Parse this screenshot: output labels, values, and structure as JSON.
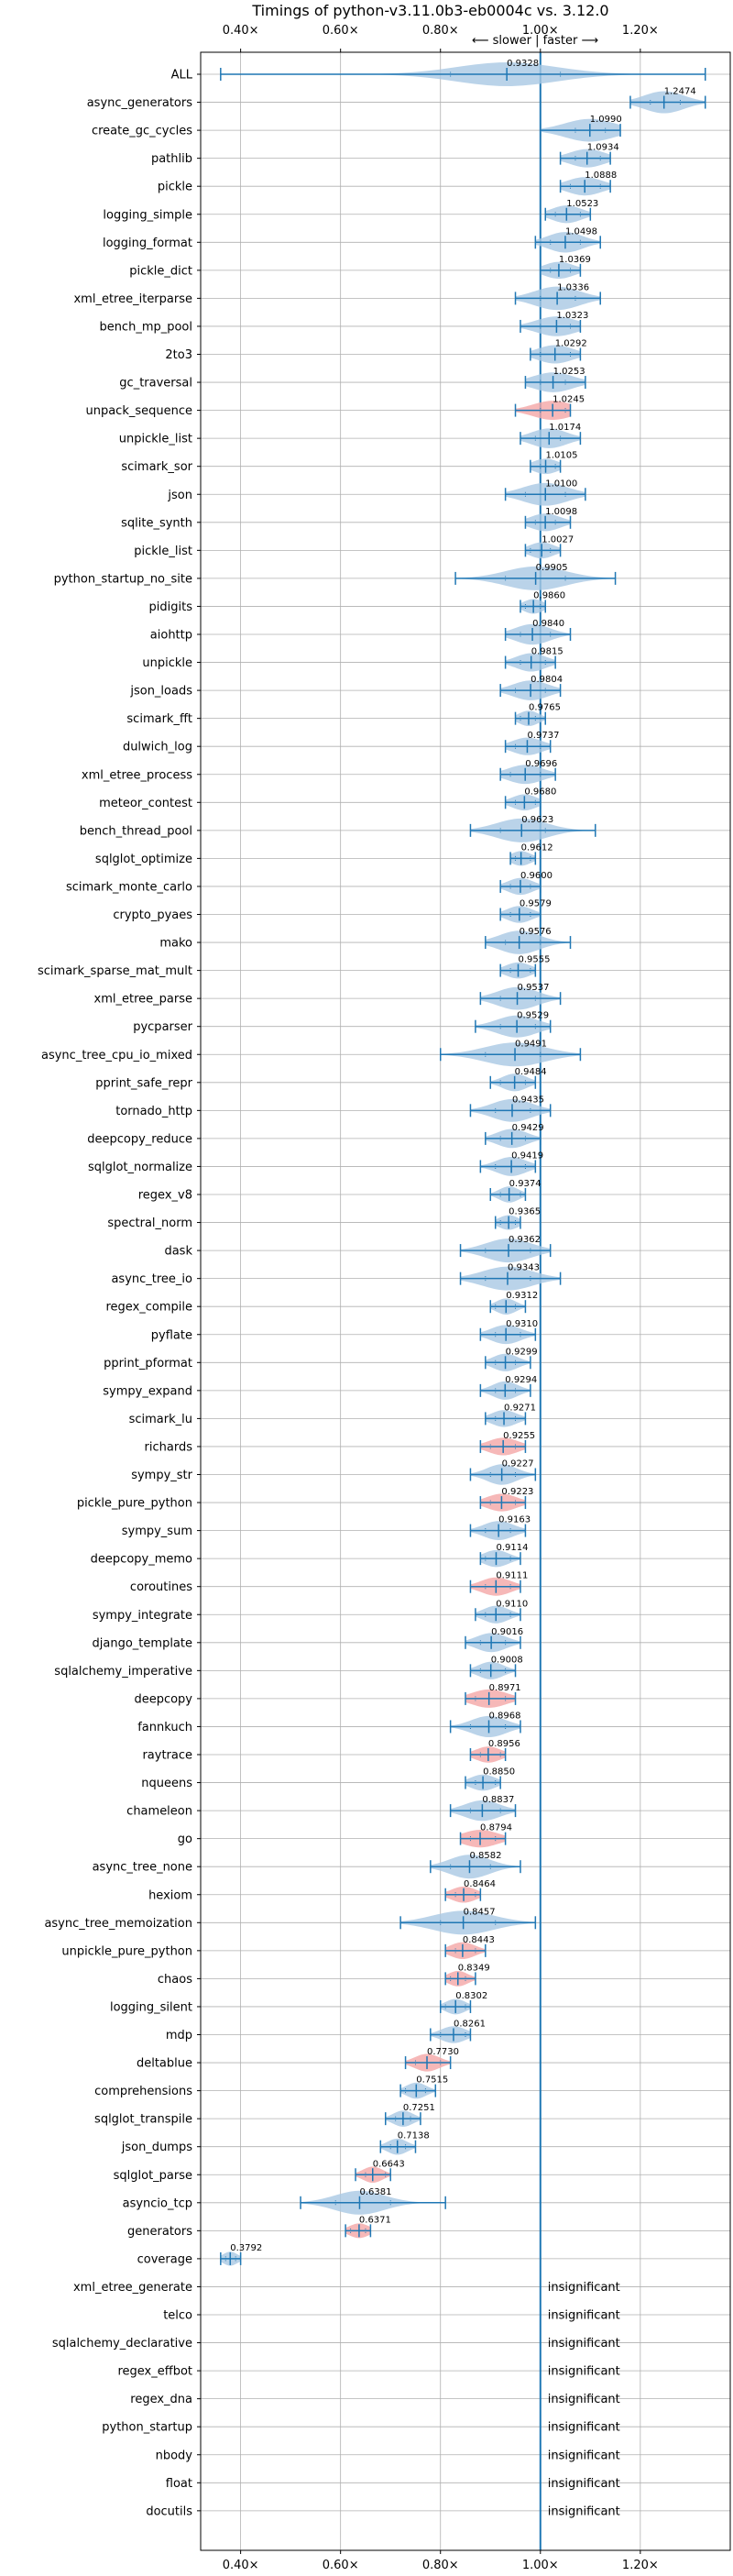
{
  "chart_data": {
    "type": "violin",
    "title": "Timings of python-v3.11.0b3-eb0004c vs. 3.12.0",
    "subtitle": "⟵ slower | faster ⟶",
    "xlim": [
      0.32,
      1.38
    ],
    "x_ticks": [
      0.4,
      0.6,
      0.8,
      1.0,
      1.2
    ],
    "x_tick_labels": [
      "0.40×",
      "0.60×",
      "0.80×",
      "1.00×",
      "1.20×"
    ],
    "reference_line": 1.0,
    "grid": true,
    "colors": {
      "faster": "#a9c8e3",
      "slower": "#f4a6a6",
      "line": "#1f77b4",
      "grid": "#b0b0b0"
    },
    "insignificant_text": "insignificant",
    "rows": [
      {
        "name": "ALL",
        "value": 0.9328,
        "label": "0.9328",
        "min": 0.36,
        "max": 1.33,
        "q1": 0.82,
        "q3": 1.04,
        "spread": 0.1,
        "color": "faster"
      },
      {
        "name": "async_generators",
        "value": 1.2474,
        "label": "1.2474",
        "min": 1.18,
        "max": 1.33,
        "q1": 1.22,
        "q3": 1.28,
        "spread": 0.04,
        "color": "faster"
      },
      {
        "name": "create_gc_cycles",
        "value": 1.099,
        "label": "1.0990",
        "min": 1.0,
        "max": 1.16,
        "q1": 1.07,
        "q3": 1.13,
        "spread": 0.05,
        "color": "faster"
      },
      {
        "name": "pathlib",
        "value": 1.0934,
        "label": "1.0934",
        "min": 1.04,
        "max": 1.14,
        "q1": 1.07,
        "q3": 1.12,
        "spread": 0.035,
        "color": "faster"
      },
      {
        "name": "pickle",
        "value": 1.0888,
        "label": "1.0888",
        "min": 1.04,
        "max": 1.14,
        "q1": 1.06,
        "q3": 1.12,
        "spread": 0.035,
        "color": "faster"
      },
      {
        "name": "logging_simple",
        "value": 1.0523,
        "label": "1.0523",
        "min": 1.01,
        "max": 1.1,
        "q1": 1.03,
        "q3": 1.08,
        "spread": 0.03,
        "color": "faster"
      },
      {
        "name": "logging_format",
        "value": 1.0498,
        "label": "1.0498",
        "min": 0.99,
        "max": 1.12,
        "q1": 1.02,
        "q3": 1.08,
        "spread": 0.035,
        "color": "faster"
      },
      {
        "name": "pickle_dict",
        "value": 1.0369,
        "label": "1.0369",
        "min": 1.0,
        "max": 1.08,
        "q1": 1.02,
        "q3": 1.06,
        "spread": 0.03,
        "color": "faster"
      },
      {
        "name": "xml_etree_iterparse",
        "value": 1.0336,
        "label": "1.0336",
        "min": 0.95,
        "max": 1.12,
        "q1": 1.0,
        "q3": 1.07,
        "spread": 0.045,
        "color": "faster"
      },
      {
        "name": "bench_mp_pool",
        "value": 1.0323,
        "label": "1.0323",
        "min": 0.96,
        "max": 1.08,
        "q1": 1.0,
        "q3": 1.06,
        "spread": 0.04,
        "color": "faster"
      },
      {
        "name": "2to3",
        "value": 1.0292,
        "label": "1.0292",
        "min": 0.98,
        "max": 1.08,
        "q1": 1.0,
        "q3": 1.06,
        "spread": 0.035,
        "color": "faster"
      },
      {
        "name": "gc_traversal",
        "value": 1.0253,
        "label": "1.0253",
        "min": 0.97,
        "max": 1.09,
        "q1": 1.0,
        "q3": 1.05,
        "spread": 0.04,
        "color": "faster"
      },
      {
        "name": "unpack_sequence",
        "value": 1.0245,
        "label": "1.0245",
        "min": 0.95,
        "max": 1.06,
        "q1": 1.0,
        "q3": 1.05,
        "spread": 0.04,
        "color": "slower"
      },
      {
        "name": "unpickle_list",
        "value": 1.0174,
        "label": "1.0174",
        "min": 0.96,
        "max": 1.08,
        "q1": 0.99,
        "q3": 1.04,
        "spread": 0.035,
        "color": "faster"
      },
      {
        "name": "scimark_sor",
        "value": 1.0105,
        "label": "1.0105",
        "min": 0.98,
        "max": 1.04,
        "q1": 1.0,
        "q3": 1.03,
        "spread": 0.025,
        "color": "faster"
      },
      {
        "name": "json",
        "value": 1.01,
        "label": "1.0100",
        "min": 0.93,
        "max": 1.09,
        "q1": 0.97,
        "q3": 1.05,
        "spread": 0.045,
        "color": "faster"
      },
      {
        "name": "sqlite_synth",
        "value": 1.0098,
        "label": "1.0098",
        "min": 0.97,
        "max": 1.06,
        "q1": 0.99,
        "q3": 1.03,
        "spread": 0.03,
        "color": "faster"
      },
      {
        "name": "pickle_list",
        "value": 1.0027,
        "label": "1.0027",
        "min": 0.97,
        "max": 1.04,
        "q1": 0.98,
        "q3": 1.02,
        "spread": 0.025,
        "color": "faster"
      },
      {
        "name": "python_startup_no_site",
        "value": 0.9905,
        "label": "0.9905",
        "min": 0.83,
        "max": 1.15,
        "q1": 0.93,
        "q3": 1.05,
        "spread": 0.06,
        "color": "faster"
      },
      {
        "name": "pidigits",
        "value": 0.986,
        "label": "0.9860",
        "min": 0.96,
        "max": 1.01,
        "q1": 0.97,
        "q3": 1.0,
        "spread": 0.02,
        "color": "faster"
      },
      {
        "name": "aiohttp",
        "value": 0.984,
        "label": "0.9840",
        "min": 0.93,
        "max": 1.06,
        "q1": 0.96,
        "q3": 1.02,
        "spread": 0.035,
        "color": "faster"
      },
      {
        "name": "unpickle",
        "value": 0.9815,
        "label": "0.9815",
        "min": 0.93,
        "max": 1.03,
        "q1": 0.96,
        "q3": 1.01,
        "spread": 0.03,
        "color": "faster"
      },
      {
        "name": "json_loads",
        "value": 0.9804,
        "label": "0.9804",
        "min": 0.92,
        "max": 1.04,
        "q1": 0.95,
        "q3": 1.01,
        "spread": 0.035,
        "color": "faster"
      },
      {
        "name": "scimark_fft",
        "value": 0.9765,
        "label": "0.9765",
        "min": 0.95,
        "max": 1.01,
        "q1": 0.96,
        "q3": 0.99,
        "spread": 0.02,
        "color": "faster"
      },
      {
        "name": "dulwich_log",
        "value": 0.9737,
        "label": "0.9737",
        "min": 0.93,
        "max": 1.02,
        "q1": 0.95,
        "q3": 1.0,
        "spread": 0.03,
        "color": "faster"
      },
      {
        "name": "xml_etree_process",
        "value": 0.9696,
        "label": "0.9696",
        "min": 0.92,
        "max": 1.03,
        "q1": 0.94,
        "q3": 1.0,
        "spread": 0.035,
        "color": "faster"
      },
      {
        "name": "meteor_contest",
        "value": 0.968,
        "label": "0.9680",
        "min": 0.93,
        "max": 1.0,
        "q1": 0.95,
        "q3": 0.99,
        "spread": 0.025,
        "color": "faster"
      },
      {
        "name": "bench_thread_pool",
        "value": 0.9623,
        "label": "0.9623",
        "min": 0.86,
        "max": 1.11,
        "q1": 0.92,
        "q3": 1.01,
        "spread": 0.05,
        "color": "faster"
      },
      {
        "name": "sqlglot_optimize",
        "value": 0.9612,
        "label": "0.9612",
        "min": 0.94,
        "max": 0.99,
        "q1": 0.95,
        "q3": 0.98,
        "spread": 0.02,
        "color": "faster"
      },
      {
        "name": "scimark_monte_carlo",
        "value": 0.96,
        "label": "0.9600",
        "min": 0.92,
        "max": 1.0,
        "q1": 0.94,
        "q3": 0.98,
        "spread": 0.025,
        "color": "faster"
      },
      {
        "name": "crypto_pyaes",
        "value": 0.9579,
        "label": "0.9579",
        "min": 0.92,
        "max": 1.0,
        "q1": 0.94,
        "q3": 0.98,
        "spread": 0.025,
        "color": "faster"
      },
      {
        "name": "mako",
        "value": 0.9576,
        "label": "0.9576",
        "min": 0.89,
        "max": 1.06,
        "q1": 0.93,
        "q3": 1.0,
        "spread": 0.04,
        "color": "faster"
      },
      {
        "name": "scimark_sparse_mat_mult",
        "value": 0.9555,
        "label": "0.9555",
        "min": 0.92,
        "max": 0.99,
        "q1": 0.94,
        "q3": 0.98,
        "spread": 0.025,
        "color": "faster"
      },
      {
        "name": "xml_etree_parse",
        "value": 0.9537,
        "label": "0.9537",
        "min": 0.88,
        "max": 1.04,
        "q1": 0.92,
        "q3": 0.99,
        "spread": 0.04,
        "color": "faster"
      },
      {
        "name": "pycparser",
        "value": 0.9529,
        "label": "0.9529",
        "min": 0.87,
        "max": 1.02,
        "q1": 0.92,
        "q3": 0.99,
        "spread": 0.04,
        "color": "faster"
      },
      {
        "name": "async_tree_cpu_io_mixed",
        "value": 0.9491,
        "label": "0.9491",
        "min": 0.8,
        "max": 1.08,
        "q1": 0.89,
        "q3": 1.0,
        "spread": 0.06,
        "color": "faster"
      },
      {
        "name": "pprint_safe_repr",
        "value": 0.9484,
        "label": "0.9484",
        "min": 0.9,
        "max": 0.99,
        "q1": 0.92,
        "q3": 0.97,
        "spread": 0.025,
        "color": "faster"
      },
      {
        "name": "tornado_http",
        "value": 0.9435,
        "label": "0.9435",
        "min": 0.86,
        "max": 1.02,
        "q1": 0.91,
        "q3": 0.98,
        "spread": 0.04,
        "color": "faster"
      },
      {
        "name": "deepcopy_reduce",
        "value": 0.9429,
        "label": "0.9429",
        "min": 0.89,
        "max": 1.0,
        "q1": 0.92,
        "q3": 0.97,
        "spread": 0.03,
        "color": "faster"
      },
      {
        "name": "sqlglot_normalize",
        "value": 0.9419,
        "label": "0.9419",
        "min": 0.88,
        "max": 0.99,
        "q1": 0.91,
        "q3": 0.97,
        "spread": 0.03,
        "color": "faster"
      },
      {
        "name": "regex_v8",
        "value": 0.9374,
        "label": "0.9374",
        "min": 0.9,
        "max": 0.97,
        "q1": 0.92,
        "q3": 0.96,
        "spread": 0.02,
        "color": "faster"
      },
      {
        "name": "spectral_norm",
        "value": 0.9365,
        "label": "0.9365",
        "min": 0.91,
        "max": 0.96,
        "q1": 0.92,
        "q3": 0.95,
        "spread": 0.02,
        "color": "faster"
      },
      {
        "name": "dask",
        "value": 0.9362,
        "label": "0.9362",
        "min": 0.84,
        "max": 1.02,
        "q1": 0.89,
        "q3": 0.98,
        "spread": 0.045,
        "color": "faster"
      },
      {
        "name": "async_tree_io",
        "value": 0.9343,
        "label": "0.9343",
        "min": 0.84,
        "max": 1.04,
        "q1": 0.89,
        "q3": 0.98,
        "spread": 0.05,
        "color": "faster"
      },
      {
        "name": "regex_compile",
        "value": 0.9312,
        "label": "0.9312",
        "min": 0.9,
        "max": 0.97,
        "q1": 0.91,
        "q3": 0.95,
        "spread": 0.02,
        "color": "faster"
      },
      {
        "name": "pyflate",
        "value": 0.931,
        "label": "0.9310",
        "min": 0.88,
        "max": 0.99,
        "q1": 0.91,
        "q3": 0.96,
        "spread": 0.03,
        "color": "faster"
      },
      {
        "name": "pprint_pformat",
        "value": 0.9299,
        "label": "0.9299",
        "min": 0.89,
        "max": 0.98,
        "q1": 0.91,
        "q3": 0.95,
        "spread": 0.025,
        "color": "faster"
      },
      {
        "name": "sympy_expand",
        "value": 0.9294,
        "label": "0.9294",
        "min": 0.88,
        "max": 0.98,
        "q1": 0.91,
        "q3": 0.95,
        "spread": 0.025,
        "color": "faster"
      },
      {
        "name": "scimark_lu",
        "value": 0.9271,
        "label": "0.9271",
        "min": 0.89,
        "max": 0.97,
        "q1": 0.91,
        "q3": 0.95,
        "spread": 0.025,
        "color": "faster"
      },
      {
        "name": "richards",
        "value": 0.9255,
        "label": "0.9255",
        "min": 0.88,
        "max": 0.97,
        "q1": 0.9,
        "q3": 0.95,
        "spread": 0.03,
        "color": "slower"
      },
      {
        "name": "sympy_str",
        "value": 0.9227,
        "label": "0.9227",
        "min": 0.86,
        "max": 0.99,
        "q1": 0.9,
        "q3": 0.95,
        "spread": 0.03,
        "color": "faster"
      },
      {
        "name": "pickle_pure_python",
        "value": 0.9223,
        "label": "0.9223",
        "min": 0.88,
        "max": 0.97,
        "q1": 0.9,
        "q3": 0.95,
        "spread": 0.03,
        "color": "slower"
      },
      {
        "name": "sympy_sum",
        "value": 0.9163,
        "label": "0.9163",
        "min": 0.86,
        "max": 0.97,
        "q1": 0.89,
        "q3": 0.94,
        "spread": 0.03,
        "color": "faster"
      },
      {
        "name": "deepcopy_memo",
        "value": 0.9114,
        "label": "0.9114",
        "min": 0.88,
        "max": 0.96,
        "q1": 0.89,
        "q3": 0.94,
        "spread": 0.025,
        "color": "faster"
      },
      {
        "name": "coroutines",
        "value": 0.9111,
        "label": "0.9111",
        "min": 0.86,
        "max": 0.96,
        "q1": 0.89,
        "q3": 0.94,
        "spread": 0.03,
        "color": "slower"
      },
      {
        "name": "sympy_integrate",
        "value": 0.911,
        "label": "0.9110",
        "min": 0.87,
        "max": 0.96,
        "q1": 0.89,
        "q3": 0.94,
        "spread": 0.025,
        "color": "faster"
      },
      {
        "name": "django_template",
        "value": 0.9016,
        "label": "0.9016",
        "min": 0.85,
        "max": 0.96,
        "q1": 0.88,
        "q3": 0.93,
        "spread": 0.03,
        "color": "faster"
      },
      {
        "name": "sqlalchemy_imperative",
        "value": 0.9008,
        "label": "0.9008",
        "min": 0.86,
        "max": 0.95,
        "q1": 0.88,
        "q3": 0.93,
        "spread": 0.025,
        "color": "faster"
      },
      {
        "name": "deepcopy",
        "value": 0.8971,
        "label": "0.8971",
        "min": 0.85,
        "max": 0.95,
        "q1": 0.87,
        "q3": 0.93,
        "spread": 0.035,
        "color": "slower"
      },
      {
        "name": "fannkuch",
        "value": 0.8968,
        "label": "0.8968",
        "min": 0.82,
        "max": 0.96,
        "q1": 0.86,
        "q3": 0.93,
        "spread": 0.035,
        "color": "faster"
      },
      {
        "name": "raytrace",
        "value": 0.8956,
        "label": "0.8956",
        "min": 0.86,
        "max": 0.93,
        "q1": 0.88,
        "q3": 0.92,
        "spread": 0.025,
        "color": "slower"
      },
      {
        "name": "nqueens",
        "value": 0.885,
        "label": "0.8850",
        "min": 0.85,
        "max": 0.92,
        "q1": 0.87,
        "q3": 0.91,
        "spread": 0.025,
        "color": "faster"
      },
      {
        "name": "chameleon",
        "value": 0.8837,
        "label": "0.8837",
        "min": 0.82,
        "max": 0.95,
        "q1": 0.86,
        "q3": 0.92,
        "spread": 0.035,
        "color": "faster"
      },
      {
        "name": "go",
        "value": 0.8794,
        "label": "0.8794",
        "min": 0.84,
        "max": 0.93,
        "q1": 0.86,
        "q3": 0.91,
        "spread": 0.035,
        "color": "slower"
      },
      {
        "name": "async_tree_none",
        "value": 0.8582,
        "label": "0.8582",
        "min": 0.78,
        "max": 0.96,
        "q1": 0.82,
        "q3": 0.9,
        "spread": 0.04,
        "color": "faster"
      },
      {
        "name": "hexiom",
        "value": 0.8464,
        "label": "0.8464",
        "min": 0.81,
        "max": 0.88,
        "q1": 0.83,
        "q3": 0.87,
        "spread": 0.025,
        "color": "slower"
      },
      {
        "name": "async_tree_memoization",
        "value": 0.8457,
        "label": "0.8457",
        "min": 0.72,
        "max": 0.99,
        "q1": 0.8,
        "q3": 0.91,
        "spread": 0.06,
        "color": "faster"
      },
      {
        "name": "unpickle_pure_python",
        "value": 0.8443,
        "label": "0.8443",
        "min": 0.81,
        "max": 0.89,
        "q1": 0.83,
        "q3": 0.87,
        "spread": 0.025,
        "color": "slower"
      },
      {
        "name": "chaos",
        "value": 0.8349,
        "label": "0.8349",
        "min": 0.81,
        "max": 0.87,
        "q1": 0.82,
        "q3": 0.85,
        "spread": 0.02,
        "color": "slower"
      },
      {
        "name": "logging_silent",
        "value": 0.8302,
        "label": "0.8302",
        "min": 0.8,
        "max": 0.86,
        "q1": 0.81,
        "q3": 0.85,
        "spread": 0.02,
        "color": "faster"
      },
      {
        "name": "mdp",
        "value": 0.8261,
        "label": "0.8261",
        "min": 0.78,
        "max": 0.86,
        "q1": 0.8,
        "q3": 0.85,
        "spread": 0.025,
        "color": "faster"
      },
      {
        "name": "deltablue",
        "value": 0.773,
        "label": "0.7730",
        "min": 0.73,
        "max": 0.82,
        "q1": 0.75,
        "q3": 0.8,
        "spread": 0.025,
        "color": "slower"
      },
      {
        "name": "comprehensions",
        "value": 0.7515,
        "label": "0.7515",
        "min": 0.72,
        "max": 0.79,
        "q1": 0.73,
        "q3": 0.77,
        "spread": 0.02,
        "color": "faster"
      },
      {
        "name": "sqlglot_transpile",
        "value": 0.7251,
        "label": "0.7251",
        "min": 0.69,
        "max": 0.76,
        "q1": 0.71,
        "q3": 0.74,
        "spread": 0.02,
        "color": "faster"
      },
      {
        "name": "json_dumps",
        "value": 0.7138,
        "label": "0.7138",
        "min": 0.68,
        "max": 0.75,
        "q1": 0.7,
        "q3": 0.73,
        "spread": 0.02,
        "color": "faster"
      },
      {
        "name": "sqlglot_parse",
        "value": 0.6643,
        "label": "0.6643",
        "min": 0.63,
        "max": 0.7,
        "q1": 0.65,
        "q3": 0.69,
        "spread": 0.02,
        "color": "slower"
      },
      {
        "name": "asyncio_tcp",
        "value": 0.6381,
        "label": "0.6381",
        "min": 0.52,
        "max": 0.81,
        "q1": 0.59,
        "q3": 0.7,
        "spread": 0.05,
        "color": "faster"
      },
      {
        "name": "generators",
        "value": 0.6371,
        "label": "0.6371",
        "min": 0.61,
        "max": 0.66,
        "q1": 0.62,
        "q3": 0.65,
        "spread": 0.02,
        "color": "slower"
      },
      {
        "name": "coverage",
        "value": 0.3792,
        "label": "0.3792",
        "min": 0.36,
        "max": 0.4,
        "q1": 0.37,
        "q3": 0.39,
        "spread": 0.015,
        "color": "faster"
      },
      {
        "name": "xml_etree_generate",
        "insignificant": true
      },
      {
        "name": "telco",
        "insignificant": true
      },
      {
        "name": "sqlalchemy_declarative",
        "insignificant": true
      },
      {
        "name": "regex_effbot",
        "insignificant": true
      },
      {
        "name": "regex_dna",
        "insignificant": true
      },
      {
        "name": "python_startup",
        "insignificant": true
      },
      {
        "name": "nbody",
        "insignificant": true
      },
      {
        "name": "float",
        "insignificant": true
      },
      {
        "name": "docutils",
        "insignificant": true
      }
    ]
  }
}
